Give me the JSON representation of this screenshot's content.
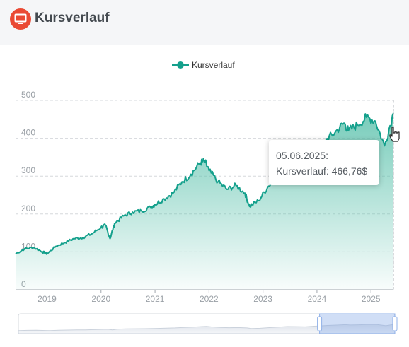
{
  "header": {
    "title": "Kursverlauf",
    "icon": "monitor-icon",
    "accent": "#ea4a34"
  },
  "tooltip": {
    "date": "05.06.2025:",
    "series": "Kursverlauf",
    "value": "466,76$"
  },
  "colors": {
    "line": "#14a08c",
    "fill_top": "#5fc3ae",
    "grid": "#d5d8dc",
    "axis_text": "#9aa0a6"
  },
  "chart_data": {
    "type": "line",
    "title": "",
    "legend": {
      "position": "top-center",
      "entries": [
        "Kursverlauf"
      ]
    },
    "xlabel": "",
    "ylabel": "",
    "x_ticks": [
      "2019",
      "2020",
      "2021",
      "2022",
      "2023",
      "2024",
      "2025"
    ],
    "y_ticks": [
      0,
      100,
      200,
      300,
      400,
      500
    ],
    "ylim": [
      0,
      500
    ],
    "xlim": [
      "2018-06",
      "2025-06"
    ],
    "grid": true,
    "series": [
      {
        "name": "Kursverlauf",
        "x": [
          "2018-06",
          "2018-08",
          "2018-10",
          "2018-12",
          "2019-01",
          "2019-03",
          "2019-05",
          "2019-07",
          "2019-09",
          "2019-11",
          "2020-01",
          "2020-02",
          "2020-03",
          "2020-04",
          "2020-06",
          "2020-08",
          "2020-10",
          "2020-12",
          "2021-01",
          "2021-03",
          "2021-05",
          "2021-07",
          "2021-09",
          "2021-11",
          "2021-12",
          "2022-01",
          "2022-03",
          "2022-05",
          "2022-07",
          "2022-09",
          "2022-10",
          "2022-12",
          "2023-02",
          "2023-04",
          "2023-06",
          "2023-08",
          "2023-10",
          "2023-12",
          "2024-01",
          "2024-03",
          "2024-05",
          "2024-07",
          "2024-08",
          "2024-10",
          "2024-12",
          "2025-02",
          "2025-04",
          "2025-06"
        ],
        "values": [
          95,
          108,
          112,
          100,
          95,
          115,
          125,
          135,
          138,
          148,
          165,
          170,
          135,
          175,
          195,
          205,
          208,
          218,
          225,
          240,
          255,
          285,
          305,
          335,
          340,
          315,
          285,
          265,
          275,
          255,
          220,
          235,
          270,
          300,
          335,
          330,
          315,
          355,
          365,
          395,
          415,
          440,
          420,
          435,
          455,
          445,
          380,
          467
        ]
      }
    ]
  },
  "navigator": {
    "range_start": 0.8,
    "range_end": 1.0
  }
}
